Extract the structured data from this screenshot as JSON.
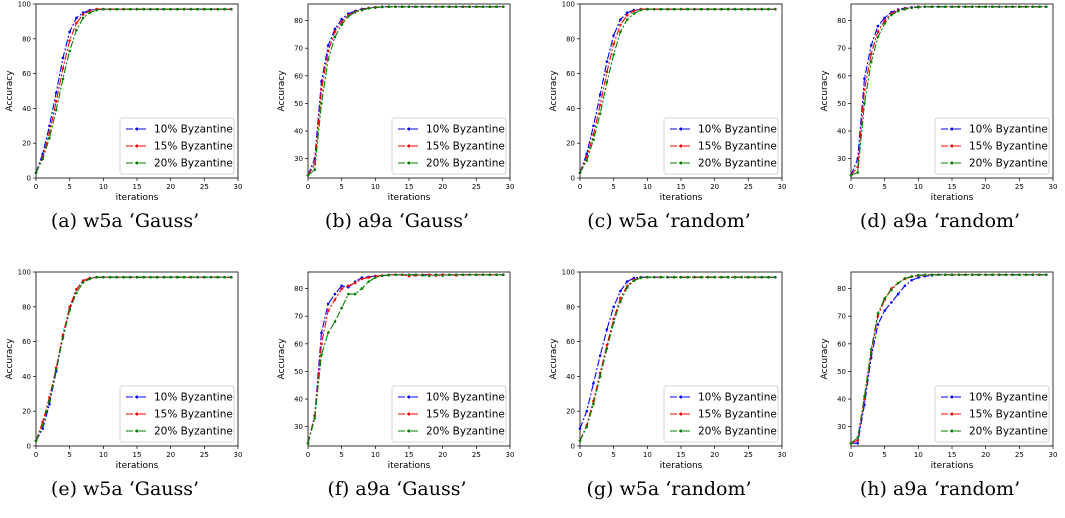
{
  "legend_labels": [
    "10% Byzantine",
    "15% Byzantine",
    "20% Byzantine"
  ],
  "series_colors": [
    "#0000ff",
    "#ff0000",
    "#008000"
  ],
  "chart_data": [
    {
      "type": "line",
      "caption": "(a) w5a ‘Gauss’",
      "xlabel": "iterations",
      "ylabel": "Accuracy",
      "xlim": [
        0,
        30
      ],
      "ylim": [
        0,
        100
      ],
      "xticks": [
        0,
        5,
        10,
        15,
        20,
        25,
        30
      ],
      "yticks": [
        0,
        20,
        40,
        60,
        80,
        100
      ],
      "grid": false,
      "legend": "lower-right",
      "series": [
        {
          "name": "10% Byzantine",
          "values": [
            3,
            14,
            30,
            49,
            69,
            84,
            92,
            95,
            96.5,
            97,
            97,
            97,
            97,
            97,
            97,
            97,
            97,
            97,
            97,
            97,
            97,
            97,
            97,
            97,
            97,
            97,
            97,
            97,
            97,
            97
          ]
        },
        {
          "name": "15% Byzantine",
          "values": [
            3,
            12,
            26,
            44,
            63,
            79,
            89,
            94,
            96,
            97,
            97,
            97,
            97,
            97,
            97,
            97,
            97,
            97,
            97,
            97,
            97,
            97,
            97,
            97,
            97,
            97,
            97,
            97,
            97,
            97
          ]
        },
        {
          "name": "20% Byzantine",
          "values": [
            3,
            11,
            23,
            39,
            57,
            73,
            85,
            92,
            95,
            96.5,
            97,
            97,
            97,
            97,
            97,
            97,
            97,
            97,
            97,
            97,
            97,
            97,
            97,
            97,
            97,
            97,
            97,
            97,
            97,
            97
          ]
        }
      ]
    },
    {
      "type": "line",
      "caption": "(b) a9a ‘Gauss’",
      "xlabel": "iterations",
      "ylabel": "Accuracy",
      "xlim": [
        0,
        30
      ],
      "ylim": [
        23,
        86
      ],
      "xticks": [
        0,
        5,
        10,
        15,
        20,
        25,
        30
      ],
      "yticks": [
        30,
        40,
        50,
        60,
        70,
        80
      ],
      "grid": false,
      "legend": "lower-right",
      "series": [
        {
          "name": "10% Byzantine",
          "values": [
            24,
            30,
            58,
            71,
            77,
            80.5,
            82.5,
            83.5,
            84.2,
            84.6,
            84.8,
            85,
            85,
            85,
            85,
            85,
            85,
            85,
            85,
            85,
            85,
            85,
            85,
            85,
            85,
            85,
            85,
            85,
            85,
            85
          ]
        },
        {
          "name": "15% Byzantine",
          "values": [
            24,
            28,
            55,
            69,
            76,
            79.5,
            82,
            83.2,
            84,
            84.5,
            84.8,
            85,
            85,
            85,
            85,
            85,
            85,
            85,
            85,
            85,
            85,
            85,
            85,
            85,
            85,
            85,
            85,
            85,
            85,
            85
          ]
        },
        {
          "name": "20% Byzantine",
          "values": [
            24,
            26,
            50,
            66,
            74,
            78.5,
            81.5,
            83,
            83.8,
            84.4,
            84.7,
            84.9,
            85,
            85,
            85,
            85,
            85,
            85,
            85,
            85,
            85,
            85,
            85,
            85,
            85,
            85,
            85,
            85,
            85,
            85
          ]
        }
      ]
    },
    {
      "type": "line",
      "caption": "(c) w5a ‘random’",
      "xlabel": "iterations",
      "ylabel": "Accuracy",
      "xlim": [
        0,
        30
      ],
      "ylim": [
        0,
        100
      ],
      "xticks": [
        0,
        5,
        10,
        15,
        20,
        25,
        30
      ],
      "yticks": [
        0,
        20,
        40,
        60,
        80,
        100
      ],
      "grid": false,
      "legend": "lower-right",
      "series": [
        {
          "name": "10% Byzantine",
          "values": [
            3,
            14,
            30,
            48,
            67,
            82,
            91,
            95,
            96.5,
            97,
            97,
            97,
            97,
            97,
            97,
            97,
            97,
            97,
            97,
            97,
            97,
            97,
            97,
            97,
            97,
            97,
            97,
            97,
            97,
            97
          ]
        },
        {
          "name": "15% Byzantine",
          "values": [
            3,
            12,
            25,
            42,
            61,
            77,
            88,
            93.5,
            96,
            97,
            97,
            97,
            97,
            97,
            97,
            97,
            97,
            97,
            97,
            97,
            97,
            97,
            97,
            97,
            97,
            97,
            97,
            97,
            97,
            97
          ]
        },
        {
          "name": "20% Byzantine",
          "values": [
            3,
            10,
            22,
            37,
            55,
            71,
            84,
            91,
            94.5,
            96.5,
            97,
            97,
            97,
            97,
            97,
            97,
            97,
            97,
            97,
            97,
            97,
            97,
            97,
            97,
            97,
            97,
            97,
            97,
            97,
            97
          ]
        }
      ]
    },
    {
      "type": "line",
      "caption": "(d) a9a ‘random’",
      "xlabel": "iterations",
      "ylabel": "Accuracy",
      "xlim": [
        0,
        30
      ],
      "ylim": [
        23,
        86
      ],
      "xticks": [
        0,
        5,
        10,
        15,
        20,
        25,
        30
      ],
      "yticks": [
        30,
        40,
        50,
        60,
        70,
        80
      ],
      "grid": false,
      "legend": "lower-right",
      "series": [
        {
          "name": "10% Byzantine",
          "values": [
            24,
            30,
            59,
            71,
            78,
            81,
            83,
            84,
            84.5,
            84.8,
            85,
            85,
            85,
            85,
            85,
            85,
            85,
            85,
            85,
            85,
            85,
            85,
            85,
            85,
            85,
            85,
            85,
            85,
            85,
            85
          ]
        },
        {
          "name": "15% Byzantine",
          "values": [
            24,
            27,
            55,
            68,
            76,
            80,
            82.5,
            83.7,
            84.3,
            84.7,
            84.9,
            85,
            85,
            85,
            85,
            85,
            85,
            85,
            85,
            85,
            85,
            85,
            85,
            85,
            85,
            85,
            85,
            85,
            85,
            85
          ]
        },
        {
          "name": "20% Byzantine",
          "values": [
            24,
            25,
            50,
            65,
            74,
            79,
            82,
            83.4,
            84.1,
            84.6,
            84.8,
            85,
            85,
            85,
            85,
            85,
            85,
            85,
            85,
            85,
            85,
            85,
            85,
            85,
            85,
            85,
            85,
            85,
            85,
            85
          ]
        }
      ]
    },
    {
      "type": "line",
      "caption": "(e) w5a ‘Gauss’",
      "xlabel": "iterations",
      "ylabel": "Accuracy",
      "xlim": [
        0,
        30
      ],
      "ylim": [
        0,
        100
      ],
      "xticks": [
        0,
        5,
        10,
        15,
        20,
        25,
        30
      ],
      "yticks": [
        0,
        20,
        40,
        60,
        80,
        100
      ],
      "grid": false,
      "legend": "lower-right",
      "series": [
        {
          "name": "10% Byzantine",
          "values": [
            3,
            10,
            24,
            43,
            63,
            79,
            90,
            95,
            96.5,
            97,
            97,
            97,
            97,
            97,
            97,
            97,
            97,
            97,
            97,
            97,
            97,
            97,
            97,
            97,
            97,
            97,
            97,
            97,
            97,
            97
          ]
        },
        {
          "name": "15% Byzantine",
          "values": [
            3,
            14,
            28,
            45,
            64,
            80,
            90,
            95,
            96.5,
            97,
            97,
            97,
            97,
            97,
            97,
            97,
            97,
            97,
            97,
            97,
            97,
            97,
            97,
            97,
            97,
            97,
            97,
            97,
            97,
            97
          ]
        },
        {
          "name": "20% Byzantine",
          "values": [
            3,
            12,
            26,
            44,
            62,
            78,
            88,
            94,
            96,
            97,
            97,
            97,
            97,
            97,
            97,
            97,
            97,
            97,
            97,
            97,
            97,
            97,
            97,
            97,
            97,
            97,
            97,
            97,
            97,
            97
          ]
        }
      ]
    },
    {
      "type": "line",
      "caption": "(f) a9a ‘Gauss’",
      "xlabel": "iterations",
      "ylabel": "Accuracy",
      "xlim": [
        0,
        30
      ],
      "ylim": [
        23,
        86
      ],
      "xticks": [
        0,
        5,
        10,
        15,
        20,
        25,
        30
      ],
      "yticks": [
        30,
        40,
        50,
        60,
        70,
        80
      ],
      "grid": false,
      "legend": "lower-right",
      "series": [
        {
          "name": "10% Byzantine",
          "values": [
            24,
            34,
            64,
            74.5,
            78,
            81,
            80.5,
            82.5,
            84,
            84.2,
            84.6,
            84.7,
            84.9,
            85,
            85,
            85,
            85,
            85,
            85,
            85,
            85,
            85,
            85,
            85,
            85,
            85,
            85,
            85,
            85,
            85
          ]
        },
        {
          "name": "15% Byzantine",
          "values": [
            24,
            34,
            60,
            72,
            76,
            80,
            81,
            82,
            83.5,
            84,
            84.5,
            84.7,
            84.9,
            85,
            85,
            84.5,
            84.8,
            85,
            85,
            84.7,
            85,
            85,
            84.8,
            85,
            85,
            85,
            85,
            85,
            85,
            85
          ]
        },
        {
          "name": "20% Byzantine",
          "values": [
            24,
            33,
            56,
            64,
            68,
            73,
            78,
            78,
            80,
            82.5,
            84,
            84.6,
            84.9,
            85,
            85,
            85,
            85,
            84.8,
            84.6,
            85,
            84.7,
            85,
            85,
            85,
            85,
            85,
            85,
            85,
            85,
            85
          ]
        }
      ]
    },
    {
      "type": "line",
      "caption": "(g) w5a ‘random’",
      "xlabel": "iterations",
      "ylabel": "Accuracy",
      "xlim": [
        0,
        30
      ],
      "ylim": [
        0,
        100
      ],
      "xticks": [
        0,
        5,
        10,
        15,
        20,
        25,
        30
      ],
      "yticks": [
        0,
        20,
        40,
        60,
        80,
        100
      ],
      "grid": false,
      "legend": "lower-right",
      "series": [
        {
          "name": "10% Byzantine",
          "values": [
            10,
            20,
            36,
            52,
            67,
            80,
            89,
            94.5,
            96.5,
            97,
            97,
            97,
            97,
            97,
            97,
            97,
            97,
            97,
            97,
            97,
            97,
            97,
            97,
            97,
            97,
            97,
            97,
            97,
            97,
            97
          ]
        },
        {
          "name": "15% Byzantine",
          "values": [
            3,
            12,
            26,
            42,
            58,
            73,
            85,
            92,
            95.5,
            96.8,
            97,
            97,
            97,
            97,
            97,
            97,
            97,
            97,
            97,
            97,
            97,
            97,
            97,
            97,
            97,
            97,
            97,
            97,
            97,
            97
          ]
        },
        {
          "name": "20% Byzantine",
          "values": [
            3,
            11,
            24,
            40,
            56,
            71,
            83,
            91,
            95,
            96.6,
            97,
            97,
            97,
            97,
            97,
            97,
            97,
            97,
            97,
            97,
            97,
            97,
            97,
            97,
            97,
            97,
            97,
            97,
            97,
            97
          ]
        }
      ]
    },
    {
      "type": "line",
      "caption": "(h) a9a ‘random’",
      "xlabel": "iterations",
      "ylabel": "Accuracy",
      "xlim": [
        0,
        30
      ],
      "ylim": [
        23,
        86
      ],
      "xticks": [
        0,
        5,
        10,
        15,
        20,
        25,
        30
      ],
      "yticks": [
        30,
        40,
        50,
        60,
        70,
        80
      ],
      "grid": false,
      "legend": "lower-right",
      "series": [
        {
          "name": "10% Byzantine",
          "values": [
            24,
            24,
            38,
            55,
            67,
            72,
            75,
            78,
            81,
            83,
            84,
            84.5,
            84.8,
            85,
            85,
            85,
            85,
            85,
            85,
            85,
            85,
            85,
            85,
            85,
            85,
            85,
            85,
            85,
            85,
            85
          ]
        },
        {
          "name": "15% Byzantine",
          "values": [
            24,
            25,
            40,
            57,
            70,
            76,
            80,
            82,
            83.5,
            84.3,
            84.7,
            84.9,
            85,
            85,
            85,
            85,
            85,
            85,
            85,
            85,
            85,
            85,
            85,
            85,
            85,
            85,
            85,
            85,
            85,
            85
          ]
        },
        {
          "name": "20% Byzantine",
          "values": [
            24,
            26,
            41,
            58,
            71,
            76.5,
            79.5,
            82,
            83.7,
            84.4,
            84.8,
            85,
            85,
            85,
            85,
            85,
            85,
            85,
            85,
            85,
            85,
            85,
            85,
            85,
            85,
            85,
            85,
            85,
            85,
            85
          ]
        }
      ]
    }
  ]
}
